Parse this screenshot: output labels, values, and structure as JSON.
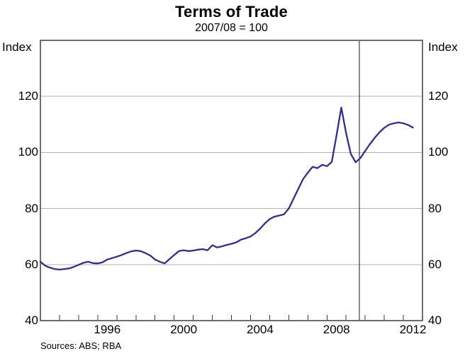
{
  "chart_data": {
    "type": "line",
    "title": "Terms of Trade",
    "subtitle": "2007/08 = 100",
    "y_axis_unit_left": "Index",
    "y_axis_unit_right": "Index",
    "source_note": "Sources: ABS; RBA",
    "x_range": [
      1993.0,
      2013.0
    ],
    "y_range": [
      40,
      140
    ],
    "yticks": [
      120,
      100,
      80,
      60,
      40
    ],
    "gridlines": [
      60,
      80,
      100,
      120
    ],
    "xticks_minor": [
      1994,
      1995,
      1996,
      1997,
      1998,
      1999,
      2000,
      2001,
      2002,
      2003,
      2004,
      2005,
      2006,
      2007,
      2008,
      2009,
      2010,
      2011,
      2012
    ],
    "xtick_labels": [
      {
        "label": "1996",
        "x": 1996.5
      },
      {
        "label": "2000",
        "x": 2000.5
      },
      {
        "label": "2004",
        "x": 2004.5
      },
      {
        "label": "2008",
        "x": 2008.5
      },
      {
        "label": "2012",
        "x": 2012.5
      }
    ],
    "forecast_line_x": 2009.7,
    "legend": "none",
    "grid": "horizontal",
    "colors": {
      "line": "#2e2e96",
      "grid": "#b2b2b2",
      "frame": "#6e6e6e",
      "tick": "#3a3a3a",
      "forecast_line": "#1a1a1a",
      "text": "#000000"
    },
    "series": [
      {
        "name": "Terms of trade (quarterly, forecast beyond vertical line)",
        "points": [
          [
            1993.0,
            61.0
          ],
          [
            1993.25,
            59.6
          ],
          [
            1993.5,
            58.9
          ],
          [
            1993.75,
            58.4
          ],
          [
            1994.0,
            58.2
          ],
          [
            1994.25,
            58.4
          ],
          [
            1994.5,
            58.6
          ],
          [
            1994.75,
            59.2
          ],
          [
            1995.0,
            59.9
          ],
          [
            1995.25,
            60.6
          ],
          [
            1995.5,
            61.0
          ],
          [
            1995.75,
            60.5
          ],
          [
            1996.0,
            60.4
          ],
          [
            1996.25,
            60.8
          ],
          [
            1996.5,
            61.8
          ],
          [
            1996.75,
            62.3
          ],
          [
            1997.0,
            62.8
          ],
          [
            1997.25,
            63.4
          ],
          [
            1997.5,
            64.1
          ],
          [
            1997.75,
            64.7
          ],
          [
            1998.0,
            65.0
          ],
          [
            1998.25,
            64.8
          ],
          [
            1998.5,
            64.1
          ],
          [
            1998.75,
            63.2
          ],
          [
            1999.0,
            61.8
          ],
          [
            1999.25,
            61.0
          ],
          [
            1999.5,
            60.4
          ],
          [
            1999.75,
            61.9
          ],
          [
            2000.0,
            63.4
          ],
          [
            2000.25,
            64.8
          ],
          [
            2000.5,
            65.1
          ],
          [
            2000.75,
            64.8
          ],
          [
            2001.0,
            65.0
          ],
          [
            2001.25,
            65.3
          ],
          [
            2001.5,
            65.5
          ],
          [
            2001.75,
            65.1
          ],
          [
            2002.0,
            66.9
          ],
          [
            2002.25,
            66.1
          ],
          [
            2002.5,
            66.5
          ],
          [
            2002.75,
            67.0
          ],
          [
            2003.0,
            67.4
          ],
          [
            2003.25,
            67.9
          ],
          [
            2003.5,
            68.9
          ],
          [
            2003.75,
            69.4
          ],
          [
            2004.0,
            70.0
          ],
          [
            2004.25,
            71.2
          ],
          [
            2004.5,
            72.8
          ],
          [
            2004.75,
            74.7
          ],
          [
            2005.0,
            76.2
          ],
          [
            2005.25,
            77.1
          ],
          [
            2005.5,
            77.5
          ],
          [
            2005.75,
            77.9
          ],
          [
            2006.0,
            80.0
          ],
          [
            2006.25,
            83.5
          ],
          [
            2006.5,
            87.0
          ],
          [
            2006.75,
            90.5
          ],
          [
            2007.0,
            92.8
          ],
          [
            2007.25,
            94.9
          ],
          [
            2007.5,
            94.4
          ],
          [
            2007.75,
            95.6
          ],
          [
            2008.0,
            95.1
          ],
          [
            2008.25,
            96.6
          ],
          [
            2008.5,
            106.0
          ],
          [
            2008.75,
            116.0
          ],
          [
            2009.0,
            107.0
          ],
          [
            2009.25,
            99.5
          ],
          [
            2009.5,
            96.5
          ],
          [
            2009.75,
            98.0
          ],
          [
            2010.0,
            100.5
          ],
          [
            2010.25,
            103.0
          ],
          [
            2010.5,
            105.2
          ],
          [
            2010.75,
            107.2
          ],
          [
            2011.0,
            108.8
          ],
          [
            2011.25,
            109.9
          ],
          [
            2011.5,
            110.4
          ],
          [
            2011.75,
            110.7
          ],
          [
            2012.0,
            110.4
          ],
          [
            2012.25,
            109.8
          ],
          [
            2012.5,
            108.9
          ]
        ]
      }
    ]
  }
}
